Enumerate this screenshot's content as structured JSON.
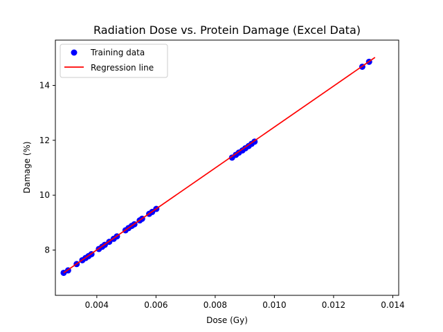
{
  "chart_data": {
    "type": "scatter",
    "title": "Radiation Dose vs. Protein Damage (Excel Data)",
    "xlabel": "Dose (Gy)",
    "ylabel": "Damage (%)",
    "xlim": [
      0.0026,
      0.0142
    ],
    "ylim": [
      6.35,
      15.65
    ],
    "x_ticks": [
      0.004,
      0.006,
      0.008,
      0.01,
      0.012,
      0.014
    ],
    "x_tick_labels": [
      "0.004",
      "0.006",
      "0.008",
      "0.010",
      "0.012",
      "0.014"
    ],
    "y_ticks": [
      8,
      10,
      12,
      14
    ],
    "y_tick_labels": [
      "8",
      "10",
      "12",
      "14"
    ],
    "grid": false,
    "legend_position": "upper-left",
    "series": [
      {
        "name": "Training data",
        "kind": "scatter",
        "color": "#0000ff",
        "points": [
          [
            0.00288,
            7.17
          ],
          [
            0.00303,
            7.26
          ],
          [
            0.00332,
            7.49
          ],
          [
            0.00351,
            7.63
          ],
          [
            0.00362,
            7.71
          ],
          [
            0.00372,
            7.78
          ],
          [
            0.00382,
            7.85
          ],
          [
            0.00407,
            8.04
          ],
          [
            0.00418,
            8.12
          ],
          [
            0.00427,
            8.19
          ],
          [
            0.00442,
            8.3
          ],
          [
            0.00457,
            8.41
          ],
          [
            0.00468,
            8.5
          ],
          [
            0.00497,
            8.72
          ],
          [
            0.00507,
            8.8
          ],
          [
            0.00518,
            8.88
          ],
          [
            0.00527,
            8.94
          ],
          [
            0.00545,
            9.08
          ],
          [
            0.00553,
            9.14
          ],
          [
            0.00577,
            9.32
          ],
          [
            0.00587,
            9.39
          ],
          [
            0.00601,
            9.5
          ],
          [
            0.00857,
            11.37
          ],
          [
            0.0087,
            11.47
          ],
          [
            0.0088,
            11.55
          ],
          [
            0.00892,
            11.63
          ],
          [
            0.00902,
            11.71
          ],
          [
            0.00913,
            11.79
          ],
          [
            0.00923,
            11.87
          ],
          [
            0.00933,
            11.95
          ],
          [
            0.01297,
            14.68
          ],
          [
            0.0132,
            14.86
          ]
        ]
      },
      {
        "name": "Regression line",
        "kind": "line",
        "color": "#ff0000",
        "points": [
          [
            0.00288,
            7.17
          ],
          [
            0.0134,
            15.02
          ]
        ]
      }
    ]
  }
}
